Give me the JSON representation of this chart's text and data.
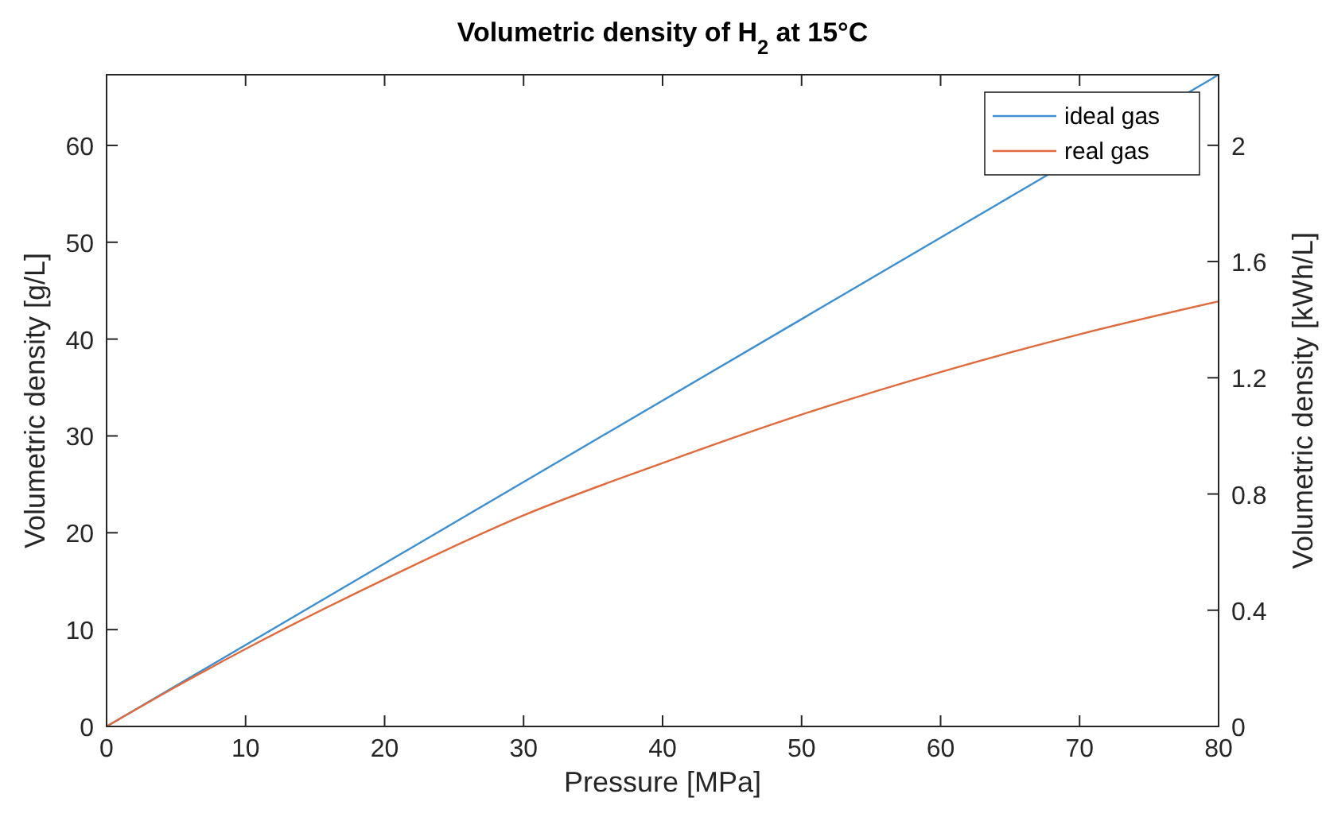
{
  "chart_data": {
    "type": "line",
    "title": "Volumetric density of H$_{2}$ at 15°C",
    "xlabel": "Pressure [MPa]",
    "ylabel": "Volumetric density [g/L]",
    "y2label": "Volumetric density [kWh/L]",
    "xlim": [
      0,
      80
    ],
    "xticks": [
      0,
      10,
      20,
      30,
      40,
      50,
      60,
      70,
      80
    ],
    "ylim": [
      0,
      67.3
    ],
    "yticks": [
      0,
      10,
      20,
      30,
      40,
      50,
      60
    ],
    "y2lim": [
      0,
      2.243
    ],
    "y2ticks": [
      0,
      0.4,
      0.8,
      1.2,
      1.6,
      2
    ],
    "grid": false,
    "legend": "top right",
    "marker": "none",
    "line_style": "solid",
    "series": [
      {
        "name": "ideal gas",
        "color": "#3d8fd1",
        "x": [
          0,
          80
        ],
        "values": [
          0,
          67.3
        ]
      },
      {
        "name": "real gas",
        "color": "#e06a3c",
        "x": [
          0,
          5,
          10,
          20,
          30,
          40,
          50,
          60,
          70,
          80
        ],
        "values": [
          0,
          4.1,
          8.0,
          15.2,
          21.8,
          27.2,
          32.2,
          36.6,
          40.5,
          43.9
        ]
      }
    ]
  }
}
